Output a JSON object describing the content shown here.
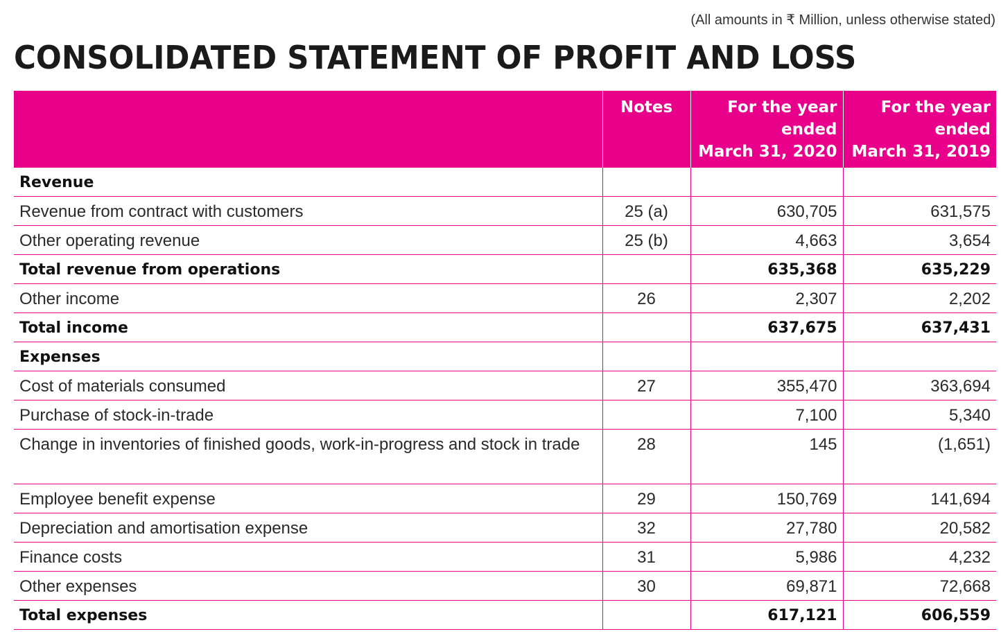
{
  "note": "(All amounts in ₹ Million, unless otherwise stated)",
  "title": "CONSOLIDATED STATEMENT OF PROFIT AND LOSS",
  "columns": {
    "notes": "Notes",
    "year1_line1": "For the year",
    "year1_line2": "ended",
    "year1_line3": "March 31, 2020",
    "year2_line1": "For the year",
    "year2_line2": "ended",
    "year2_line3": "March 31, 2019"
  },
  "rows": [
    {
      "label": "Revenue",
      "notes": "",
      "y2020": "",
      "y2019": "",
      "style": "section"
    },
    {
      "label": "Revenue from contract with customers",
      "notes": "25 (a)",
      "y2020": "630,705",
      "y2019": "631,575",
      "style": "normal"
    },
    {
      "label": "Other operating revenue",
      "notes": "25 (b)",
      "y2020": "4,663",
      "y2019": "3,654",
      "style": "normal"
    },
    {
      "label": "Total revenue from operations",
      "notes": "",
      "y2020": "635,368",
      "y2019": "635,229",
      "style": "bold"
    },
    {
      "label": "Other income",
      "notes": "26",
      "y2020": "2,307",
      "y2019": "2,202",
      "style": "normal"
    },
    {
      "label": "Total income",
      "notes": "",
      "y2020": "637,675",
      "y2019": "637,431",
      "style": "bold"
    },
    {
      "label": "Expenses",
      "notes": "",
      "y2020": "",
      "y2019": "",
      "style": "section"
    },
    {
      "label": "Cost of materials consumed",
      "notes": "27",
      "y2020": "355,470",
      "y2019": "363,694",
      "style": "normal"
    },
    {
      "label": "Purchase of stock-in-trade",
      "notes": "",
      "y2020": "7,100",
      "y2019": "5,340",
      "style": "normal"
    },
    {
      "label": "Change in inventories of finished goods, work-in-progress and stock in trade",
      "notes": "28",
      "y2020": "145",
      "y2019": "(1,651)",
      "style": "tall"
    },
    {
      "label": "Employee benefit expense",
      "notes": "29",
      "y2020": "150,769",
      "y2019": "141,694",
      "style": "normal"
    },
    {
      "label": "Depreciation and amortisation expense",
      "notes": "32",
      "y2020": "27,780",
      "y2019": "20,582",
      "style": "normal"
    },
    {
      "label": "Finance costs",
      "notes": "31",
      "y2020": "5,986",
      "y2019": "4,232",
      "style": "normal"
    },
    {
      "label": "Other expenses",
      "notes": "30",
      "y2020": "69,871",
      "y2019": "72,668",
      "style": "normal"
    },
    {
      "label": "Total expenses",
      "notes": "",
      "y2020": "617,121",
      "y2019": "606,559",
      "style": "bold"
    }
  ]
}
